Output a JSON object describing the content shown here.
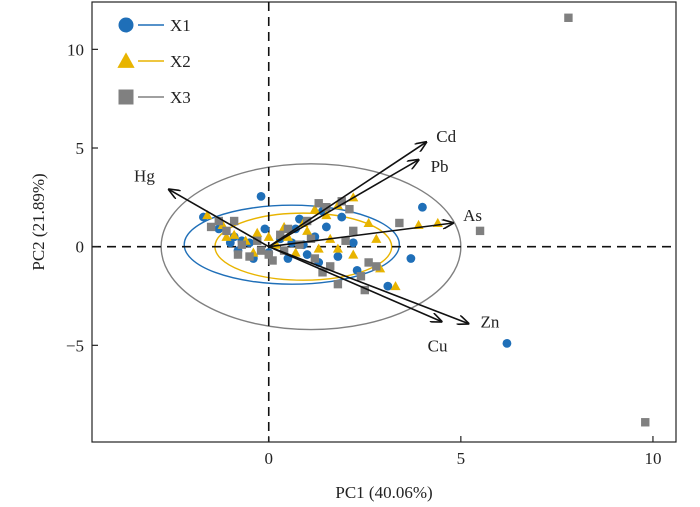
{
  "chart_data": {
    "type": "scatter",
    "title": "",
    "xlabel": "PC1 (40.06%)",
    "ylabel": "PC2 (21.89%)",
    "xlim": [
      -4.6,
      10.6
    ],
    "ylim": [
      -9.9,
      12.4
    ],
    "xticks": [
      0,
      5,
      10
    ],
    "yticks": [
      -5,
      0,
      5,
      10
    ],
    "x_tick_labels": [
      "0",
      "5",
      "10"
    ],
    "y_tick_labels": [
      "−5",
      "0",
      "5",
      "10"
    ],
    "reference_lines": "dashed lines at x = 0 and y = 0",
    "grid": false,
    "legend_position": "top-left",
    "series": [
      {
        "name": "X1",
        "marker": "circle",
        "color": "#1f6fb8",
        "ellipse": {
          "cx": 0.6,
          "cy": 0.1,
          "rx": 2.8,
          "ry": 2.0
        },
        "points": [
          [
            -0.2,
            2.55
          ],
          [
            -1.7,
            1.5
          ],
          [
            -1.3,
            0.9
          ],
          [
            -0.9,
            0.5
          ],
          [
            -0.7,
            0.3
          ],
          [
            -0.5,
            0.2
          ],
          [
            -0.8,
            -0.2
          ],
          [
            -0.4,
            -0.6
          ],
          [
            0.0,
            -0.3
          ],
          [
            0.3,
            0.4
          ],
          [
            0.6,
            0.2
          ],
          [
            0.9,
            0.1
          ],
          [
            1.2,
            0.5
          ],
          [
            1.5,
            1.0
          ],
          [
            0.8,
            1.4
          ],
          [
            1.4,
            1.8
          ],
          [
            1.9,
            1.5
          ],
          [
            2.2,
            0.2
          ],
          [
            1.8,
            -0.5
          ],
          [
            1.3,
            -0.8
          ],
          [
            0.5,
            -0.6
          ],
          [
            3.1,
            -2.0
          ],
          [
            3.7,
            -0.6
          ],
          [
            4.0,
            2.0
          ],
          [
            6.2,
            -4.9
          ],
          [
            2.3,
            -1.2
          ],
          [
            -0.1,
            0.9
          ],
          [
            0.7,
            0.9
          ],
          [
            1.0,
            -0.4
          ],
          [
            -1.0,
            0.2
          ]
        ]
      },
      {
        "name": "X2",
        "marker": "triangle",
        "color": "#e8b400",
        "ellipse": {
          "cx": 0.9,
          "cy": 0.0,
          "rx": 2.3,
          "ry": 1.7
        },
        "points": [
          [
            -1.6,
            1.6
          ],
          [
            -1.2,
            1.1
          ],
          [
            -0.9,
            0.6
          ],
          [
            -0.6,
            0.3
          ],
          [
            -0.3,
            0.7
          ],
          [
            0.2,
            0.1
          ],
          [
            0.5,
            0.5
          ],
          [
            0.9,
            1.2
          ],
          [
            1.2,
            1.9
          ],
          [
            1.5,
            1.6
          ],
          [
            1.8,
            2.1
          ],
          [
            2.2,
            2.5
          ],
          [
            2.6,
            1.2
          ],
          [
            2.2,
            -0.4
          ],
          [
            1.6,
            0.4
          ],
          [
            1.3,
            -0.1
          ],
          [
            0.7,
            -0.3
          ],
          [
            3.3,
            -2.0
          ],
          [
            3.9,
            1.1
          ],
          [
            4.4,
            1.2
          ],
          [
            -0.4,
            -0.3
          ],
          [
            1.8,
            -0.1
          ],
          [
            2.9,
            -1.1
          ],
          [
            0.0,
            0.5
          ],
          [
            1.0,
            0.8
          ],
          [
            -1.1,
            0.5
          ],
          [
            0.4,
            1.0
          ],
          [
            2.8,
            0.4
          ]
        ]
      },
      {
        "name": "X3",
        "marker": "square",
        "color": "#808080",
        "ellipse": {
          "cx": 1.1,
          "cy": 0.0,
          "rx": 3.9,
          "ry": 4.2
        },
        "points": [
          [
            7.8,
            11.6
          ],
          [
            9.8,
            -8.9
          ],
          [
            5.5,
            0.8
          ],
          [
            3.4,
            1.2
          ],
          [
            2.5,
            -2.2
          ],
          [
            1.8,
            -1.9
          ],
          [
            1.4,
            -1.3
          ],
          [
            1.2,
            -0.6
          ],
          [
            0.8,
            0.1
          ],
          [
            0.4,
            -0.2
          ],
          [
            0.0,
            -0.4
          ],
          [
            -0.3,
            0.3
          ],
          [
            -0.7,
            0.1
          ],
          [
            -1.1,
            0.8
          ],
          [
            -1.5,
            1.0
          ],
          [
            -1.3,
            1.3
          ],
          [
            -0.9,
            1.3
          ],
          [
            1.5,
            2.0
          ],
          [
            1.9,
            2.3
          ],
          [
            2.1,
            1.9
          ],
          [
            1.0,
            1.3
          ],
          [
            0.5,
            0.9
          ],
          [
            -0.2,
            -0.2
          ],
          [
            2.8,
            -1.0
          ],
          [
            2.0,
            0.3
          ],
          [
            1.6,
            -1.0
          ],
          [
            2.4,
            -1.5
          ],
          [
            0.3,
            0.6
          ],
          [
            -0.5,
            -0.5
          ],
          [
            1.1,
            0.4
          ],
          [
            2.6,
            -0.8
          ],
          [
            -0.8,
            -0.4
          ],
          [
            1.3,
            2.2
          ],
          [
            0.1,
            -0.7
          ],
          [
            2.2,
            0.8
          ]
        ]
      }
    ],
    "loadings": [
      {
        "label": "Cd",
        "x": 4.1,
        "y": 5.3
      },
      {
        "label": "Pb",
        "x": 3.9,
        "y": 4.4
      },
      {
        "label": "As",
        "x": 4.8,
        "y": 1.2
      },
      {
        "label": "Hg",
        "x": -2.6,
        "y": 2.9
      },
      {
        "label": "Zn",
        "x": 5.2,
        "y": -3.9
      },
      {
        "label": "Cu",
        "x": 4.5,
        "y": -3.8
      }
    ]
  }
}
